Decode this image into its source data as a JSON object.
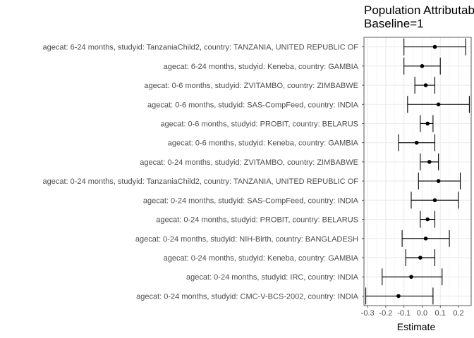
{
  "chart_data": {
    "type": "forest",
    "title": "Population Attributable",
    "subtitle": "Baseline=1",
    "xlabel": "Estimate",
    "xlim": [
      -0.32,
      0.27
    ],
    "xticks": [
      -0.3,
      -0.2,
      -0.1,
      0.0,
      0.1,
      0.2
    ],
    "xtick_labels": [
      "-0.3",
      "-0.2",
      "-0.1",
      "0.0",
      "0.1",
      "0.2"
    ],
    "grid": true,
    "rows": [
      {
        "label": "agecat: 6-24 months, studyid: TanzaniaChild2, country: TANZANIA, UNITED REPUBLIC OF",
        "estimate": 0.07,
        "lower": -0.1,
        "upper": 0.24
      },
      {
        "label": "agecat: 6-24 months, studyid: Keneba, country: GAMBIA",
        "estimate": 0.0,
        "lower": -0.1,
        "upper": 0.1
      },
      {
        "label": "agecat: 0-6 months, studyid: ZVITAMBO, country: ZIMBABWE",
        "estimate": 0.02,
        "lower": -0.04,
        "upper": 0.07
      },
      {
        "label": "agecat: 0-6 months, studyid: SAS-CompFeed, country: INDIA",
        "estimate": 0.09,
        "lower": -0.08,
        "upper": 0.26
      },
      {
        "label": "agecat: 0-6 months, studyid: PROBIT, country: BELARUS",
        "estimate": 0.03,
        "lower": -0.01,
        "upper": 0.06
      },
      {
        "label": "agecat: 0-6 months, studyid: Keneba, country: GAMBIA",
        "estimate": -0.03,
        "lower": -0.13,
        "upper": 0.07
      },
      {
        "label": "agecat: 0-24 months, studyid: ZVITAMBO, country: ZIMBABWE",
        "estimate": 0.04,
        "lower": -0.01,
        "upper": 0.09
      },
      {
        "label": "agecat: 0-24 months, studyid: TanzaniaChild2, country: TANZANIA, UNITED REPUBLIC OF",
        "estimate": 0.09,
        "lower": -0.02,
        "upper": 0.21
      },
      {
        "label": "agecat: 0-24 months, studyid: SAS-CompFeed, country: INDIA",
        "estimate": 0.07,
        "lower": -0.06,
        "upper": 0.2
      },
      {
        "label": "agecat: 0-24 months, studyid: PROBIT, country: BELARUS",
        "estimate": 0.03,
        "lower": -0.01,
        "upper": 0.07
      },
      {
        "label": "agecat: 0-24 months, studyid: NIH-Birth, country: BANGLADESH",
        "estimate": 0.02,
        "lower": -0.11,
        "upper": 0.15
      },
      {
        "label": "agecat: 0-24 months, studyid: Keneba, country: GAMBIA",
        "estimate": -0.01,
        "lower": -0.09,
        "upper": 0.07
      },
      {
        "label": "agecat: 0-24 months, studyid: IRC, country: INDIA",
        "estimate": -0.06,
        "lower": -0.22,
        "upper": 0.11
      },
      {
        "label": "agecat: 0-24 months, studyid: CMC-V-BCS-2002, country: INDIA",
        "estimate": -0.13,
        "lower": -0.31,
        "upper": 0.06
      }
    ]
  }
}
